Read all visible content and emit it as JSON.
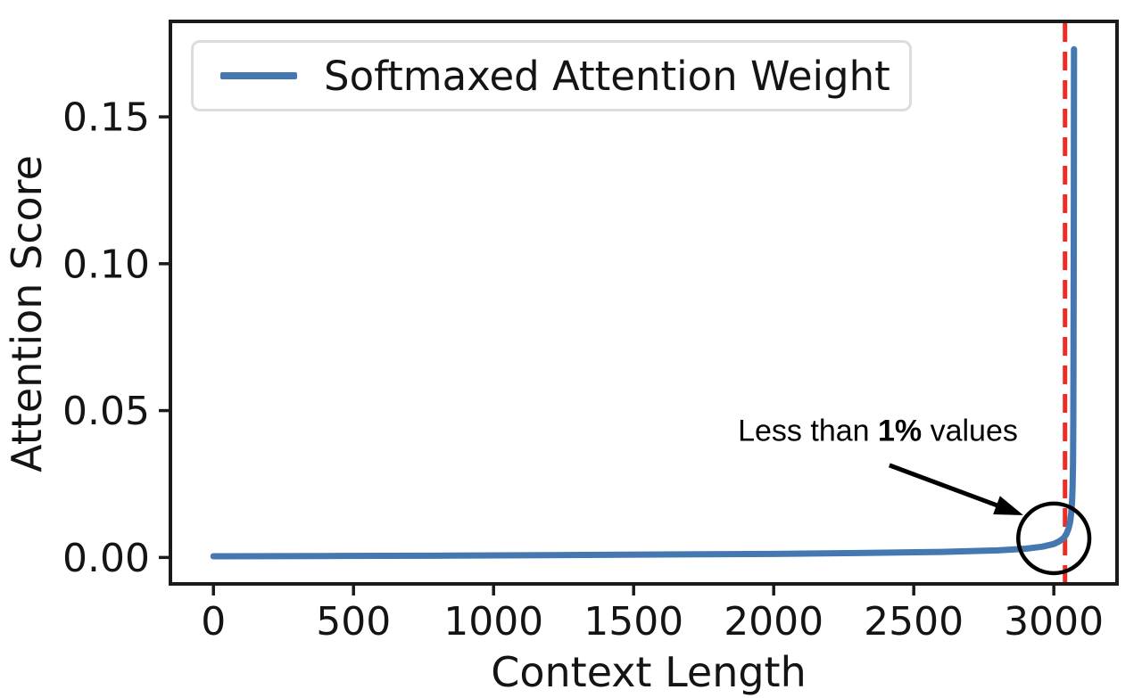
{
  "figure": {
    "background": "#ffffff"
  },
  "chart_data": {
    "type": "line",
    "title": "",
    "xlabel": "Context Length",
    "ylabel": "Attention Score",
    "xlim": [
      -153.6,
      3225.6
    ],
    "ylim": [
      -0.009,
      0.1825
    ],
    "xticks": [
      "0",
      "500",
      "1000",
      "1500",
      "2000",
      "2500",
      "3000"
    ],
    "yticks": [
      "0.00",
      "0.05",
      "0.10",
      "0.15"
    ],
    "grid": false,
    "axes_color": "#1a1a1a",
    "legend": {
      "position": "upper-left",
      "label": "Softmaxed Attention Weight"
    },
    "series": [
      {
        "name": "Softmaxed Attention Weight",
        "color": "#4577b1",
        "line_width": 7,
        "points": [
          [
            0,
            0.0004
          ],
          [
            400,
            0.0005
          ],
          [
            800,
            0.0006
          ],
          [
            1200,
            0.0008
          ],
          [
            1600,
            0.001
          ],
          [
            2000,
            0.0012
          ],
          [
            2300,
            0.0015
          ],
          [
            2600,
            0.0019
          ],
          [
            2800,
            0.0024
          ],
          [
            2900,
            0.003
          ],
          [
            2960,
            0.0037
          ],
          [
            3000,
            0.0046
          ],
          [
            3020,
            0.0055
          ],
          [
            3035,
            0.0066
          ],
          [
            3045,
            0.008
          ],
          [
            3052,
            0.0097
          ],
          [
            3058,
            0.012
          ],
          [
            3062,
            0.015
          ],
          [
            3065,
            0.019
          ],
          [
            3067,
            0.024
          ],
          [
            3068.5,
            0.032
          ],
          [
            3069.5,
            0.045
          ],
          [
            3070.3,
            0.065
          ],
          [
            3070.9,
            0.09
          ],
          [
            3071.4,
            0.12
          ],
          [
            3071.8,
            0.15
          ],
          [
            3072,
            0.173
          ]
        ]
      }
    ],
    "vline": {
      "x": 3040,
      "color": "#ed2d24",
      "style": "dashed",
      "line_width": 5
    },
    "annotation": {
      "text_before": "Less than ",
      "text_bold": "1%",
      "text_after": " values",
      "text_x": 2372,
      "text_y": 0.0429,
      "arrow_from": [
        2413,
        0.0314
      ],
      "arrow_to": [
        2891,
        0.0144
      ],
      "circle": {
        "x": 3000,
        "y": 0.0065,
        "rx": 127,
        "ry": 0.01184
      },
      "color": "#000000"
    }
  }
}
